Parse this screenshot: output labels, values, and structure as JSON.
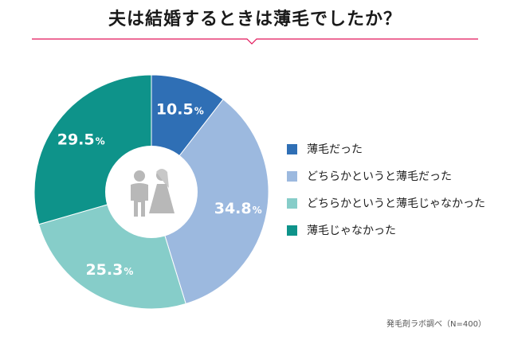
{
  "chart_data": {
    "type": "pie",
    "title": "夫は結婚するときは薄毛でしたか？",
    "categories": [
      "薄毛だった",
      "どちらかというと薄毛だった",
      "どちらかというと薄毛じゃなかった",
      "薄毛じゃなかった"
    ],
    "values": [
      10.5,
      34.8,
      25.3,
      29.5
    ],
    "value_labels": [
      "10.5",
      "34.8",
      "25.3",
      "29.5"
    ],
    "unit": "%",
    "colors": [
      "#2f6fb5",
      "#9cb9df",
      "#86cdc9",
      "#0e938a"
    ],
    "donut": true,
    "legend_position": "right"
  },
  "icon": "bride-and-groom-icon",
  "accent_color": "#e2165a",
  "source_note": "発毛剤ラボ調べ（N=400）"
}
